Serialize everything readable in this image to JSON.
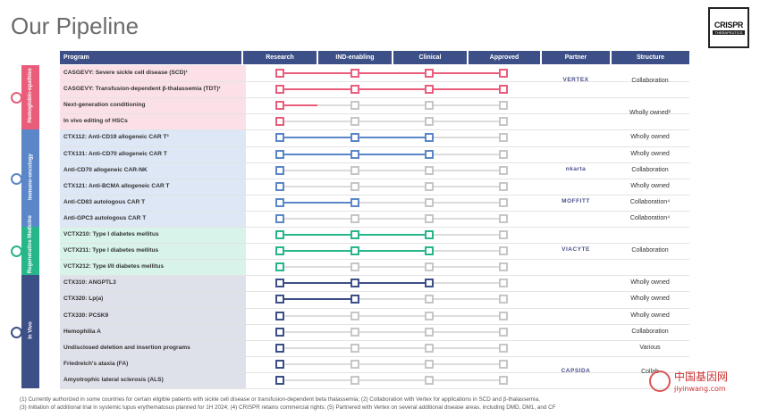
{
  "title": "Our Pipeline",
  "logo": {
    "name": "CRISPR",
    "sub": "THERAPEUTICS"
  },
  "headers": {
    "program": "Program",
    "research": "Research",
    "ind": "IND-enabling",
    "clinical": "Clinical",
    "approved": "Approved",
    "partner": "Partner",
    "structure": "Structure"
  },
  "sections": [
    {
      "label": "Hemoglobin-opathies",
      "color": "#e95d7a",
      "bg": "#fbe1e7"
    },
    {
      "label": "Immuno-oncology",
      "color": "#5b86c8",
      "bg": "#dde7f5"
    },
    {
      "label": "Regenerative Medicine",
      "color": "#27b58a",
      "bg": "#d8f3ea"
    },
    {
      "label": "In Vivo",
      "color": "#3d4f87",
      "bg": "#dfe1ea"
    }
  ],
  "programs": [
    {
      "name": "CASGEVY: Severe sickle cell disease (SCD)¹",
      "stage": 4,
      "section": 0
    },
    {
      "name": "CASGEVY: Transfusion-dependent β-thalassemia (TDT)¹",
      "stage": 4,
      "section": 0
    },
    {
      "name": "Next-generation conditioning",
      "stage": 1.5,
      "section": 0
    },
    {
      "name": "In vivo editing of HSCs",
      "stage": 1,
      "section": 0
    },
    {
      "name": "CTX112: Anti-CD19 allogeneic CAR T³",
      "stage": 3,
      "section": 1
    },
    {
      "name": "CTX131: Anti-CD70 allogeneic CAR T",
      "stage": 3,
      "section": 1
    },
    {
      "name": "Anti-CD70 allogeneic CAR-NK",
      "stage": 1,
      "section": 1
    },
    {
      "name": "CTX121: Anti-BCMA allogeneic CAR T",
      "stage": 1,
      "section": 1
    },
    {
      "name": "Anti-CD83 autologous CAR T",
      "stage": 2,
      "section": 1
    },
    {
      "name": "Anti-GPC3 autologous CAR T",
      "stage": 1,
      "section": 1
    },
    {
      "name": "VCTX210: Type I diabetes mellitus",
      "stage": 3,
      "section": 2
    },
    {
      "name": "VCTX211: Type I diabetes mellitus",
      "stage": 3,
      "section": 2
    },
    {
      "name": "VCTX212: Type I/II diabetes mellitus",
      "stage": 1,
      "section": 2
    },
    {
      "name": "CTX310: ANGPTL3",
      "stage": 3,
      "section": 3
    },
    {
      "name": "CTX320: Lp(a)",
      "stage": 2,
      "section": 3
    },
    {
      "name": "CTX330: PCSK9",
      "stage": 1,
      "section": 3
    },
    {
      "name": "Hemophilia A",
      "stage": 1,
      "section": 3
    },
    {
      "name": "Undisclosed deletion and insertion programs",
      "stage": 1,
      "section": 3
    },
    {
      "name": "Friedreich's ataxia (FA)",
      "stage": 1,
      "section": 3
    },
    {
      "name": "Amyotrophic lateral sclerosis (ALS)",
      "stage": 1,
      "section": 3
    }
  ],
  "partners": [
    {
      "label": "VERTEX",
      "row": 0.5
    },
    {
      "label": "nkarta",
      "row": 6
    },
    {
      "label": "MOFFITT",
      "row": 8
    },
    {
      "label": "",
      "row": 9
    },
    {
      "label": "VIACYTE",
      "row": 11
    },
    {
      "label": "",
      "row": 16
    },
    {
      "label": "CAPSIDA",
      "row": 18.5
    }
  ],
  "structures": [
    {
      "label": "Collaboration",
      "row": 0.5
    },
    {
      "label": "Wholly owned²",
      "row": 2.5
    },
    {
      "label": "Wholly owned",
      "row": 4
    },
    {
      "label": "Wholly owned",
      "row": 5
    },
    {
      "label": "Collaboration",
      "row": 6
    },
    {
      "label": "Wholly owned",
      "row": 7
    },
    {
      "label": "Collaboration⁴",
      "row": 8
    },
    {
      "label": "Collaboration⁴",
      "row": 9
    },
    {
      "label": "Collaboration",
      "row": 11
    },
    {
      "label": "Wholly owned",
      "row": 13
    },
    {
      "label": "Wholly owned",
      "row": 14
    },
    {
      "label": "Wholly owned",
      "row": 15
    },
    {
      "label": "Collaboration",
      "row": 16
    },
    {
      "label": "Various",
      "row": 17
    },
    {
      "label": "Collab",
      "row": 18.5
    }
  ],
  "footnotes": [
    "(1) Currently authorized in some countries for certain eligible patients with sickle cell disease or transfusion-dependent beta thalassemia; (2) Collaboration with Vertex for applications in SCD and β-thalassemia,",
    "(3) Initiation of additional trial in systemic lupus erythematosus planned for 1H 2024; (4) CRISPR retains commercial rights; (5) Partnered with Vertex on several additional disease areas, including DMD, DM1, and CF"
  ],
  "watermark": {
    "cn": "中国基因网",
    "url": "jiyinwang.com"
  }
}
